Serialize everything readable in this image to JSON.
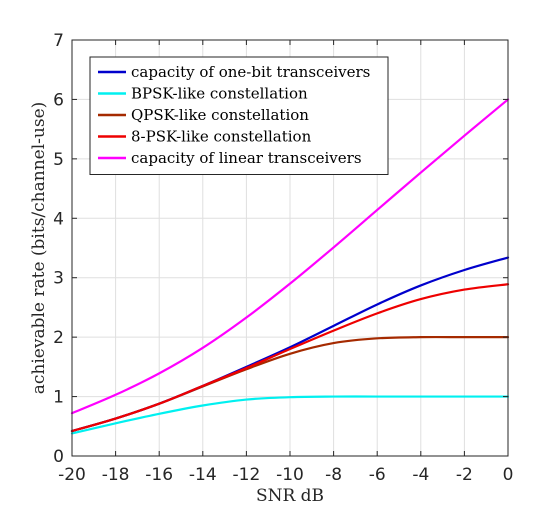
{
  "chart_data": {
    "type": "line",
    "title": "",
    "xlabel": "SNR dB",
    "ylabel": "achievable rate (bits/channel-use)",
    "xlim": [
      -20,
      0
    ],
    "ylim": [
      0,
      7
    ],
    "xticks": [
      -20,
      -18,
      -16,
      -14,
      -12,
      -10,
      -8,
      -6,
      -4,
      -2,
      0
    ],
    "yticks": [
      0,
      1,
      2,
      3,
      4,
      5,
      6,
      7
    ],
    "xtick_labels": [
      "-20",
      "-18",
      "-16",
      "-14",
      "-12",
      "-10",
      "-8",
      "-6",
      "-4",
      "-2",
      "0"
    ],
    "ytick_labels": [
      "0",
      "1",
      "2",
      "3",
      "4",
      "5",
      "6",
      "7"
    ],
    "grid": true,
    "legend_position": "top-left",
    "x": [
      -20,
      -18,
      -16,
      -14,
      -12,
      -10,
      -8,
      -6,
      -4,
      -2,
      0
    ],
    "series": [
      {
        "name": "capacity of one-bit transceivers",
        "color": "#0000cc",
        "values": [
          0.42,
          0.63,
          0.88,
          1.18,
          1.5,
          1.83,
          2.19,
          2.55,
          2.87,
          3.13,
          3.34
        ]
      },
      {
        "name": "BPSK-like constellation",
        "color": "#00f0f0",
        "values": [
          0.38,
          0.55,
          0.71,
          0.85,
          0.95,
          0.99,
          1.0,
          1.0,
          1.0,
          1.0,
          1.0
        ]
      },
      {
        "name": "QPSK-like constellation",
        "color": "#a52a00",
        "values": [
          0.42,
          0.63,
          0.88,
          1.17,
          1.46,
          1.72,
          1.9,
          1.98,
          2.0,
          2.0,
          2.0
        ]
      },
      {
        "name": "8-PSK-like constellation",
        "color": "#ee0000",
        "values": [
          0.42,
          0.63,
          0.88,
          1.18,
          1.48,
          1.8,
          2.11,
          2.4,
          2.64,
          2.8,
          2.89
        ]
      },
      {
        "name": "capacity of linear transceivers",
        "color": "#ff00ff",
        "values": [
          0.72,
          1.03,
          1.39,
          1.82,
          2.33,
          2.9,
          3.51,
          4.14,
          4.77,
          5.39,
          6.0
        ]
      }
    ]
  }
}
